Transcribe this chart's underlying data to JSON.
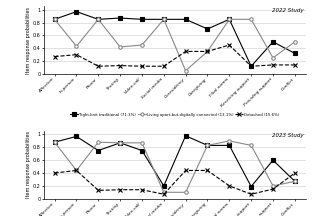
{
  "title_2022": "2022 Study",
  "title_2023": "2023 Study",
  "ylabel": "Item response probabilities",
  "categories": [
    "Affection",
    "In-person",
    "Phone",
    "Texting",
    "Video-call",
    "Social media",
    "Coresidency",
    "Caregiving",
    "Filial norms",
    "Receiving support",
    "Providing support",
    "Conflict"
  ],
  "legend_2022": [
    "Tight-knit traditional (71.3%)",
    "Living apart-but-digitally connected (13.1%)",
    "Detached (15.6%)"
  ],
  "legend_2023": [
    "Tight-knit traditional (59.7%)",
    "Living apart-but-digitally connected (22.3%)",
    "Detached (18.0%)"
  ],
  "data_2022": {
    "tight_knit": [
      0.85,
      0.97,
      0.85,
      0.87,
      0.85,
      0.85,
      0.85,
      0.7,
      0.85,
      0.12,
      0.5,
      0.32
    ],
    "living_apart": [
      0.85,
      0.43,
      0.85,
      0.42,
      0.45,
      0.85,
      0.05,
      0.35,
      0.85,
      0.85,
      0.25,
      0.5
    ],
    "detached": [
      0.27,
      0.3,
      0.12,
      0.13,
      0.12,
      0.12,
      0.35,
      0.35,
      0.45,
      0.12,
      0.14,
      0.14
    ]
  },
  "data_2023": {
    "tight_knit": [
      0.88,
      0.97,
      0.75,
      0.87,
      0.75,
      0.2,
      0.98,
      0.83,
      0.83,
      0.19,
      0.6,
      0.27
    ],
    "living_apart": [
      0.88,
      0.44,
      0.88,
      0.87,
      0.87,
      0.1,
      0.1,
      0.83,
      0.9,
      0.83,
      0.2,
      0.27
    ],
    "detached": [
      0.4,
      0.44,
      0.13,
      0.14,
      0.14,
      0.07,
      0.44,
      0.44,
      0.2,
      0.07,
      0.15,
      0.4
    ]
  },
  "line1_color": "#000000",
  "line2_color": "#888888",
  "line3_color": "#000000",
  "line1_style": "-",
  "line2_style": "-",
  "line3_style": "--",
  "line1_marker": "s",
  "line2_marker": "o",
  "line3_marker": "x",
  "markersize": 2.5,
  "linewidth": 0.8,
  "ylim": [
    0,
    1.05
  ],
  "yticks": [
    0,
    0.2,
    0.4,
    0.6,
    0.8,
    1
  ],
  "background": "#ffffff"
}
